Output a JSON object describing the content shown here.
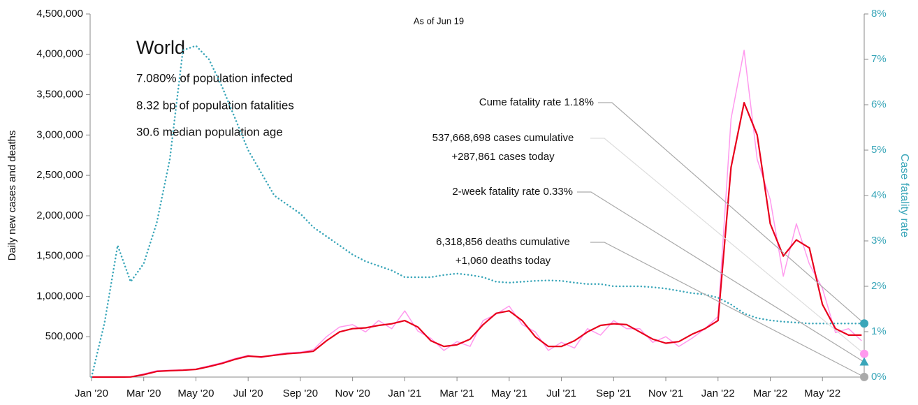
{
  "chart_data": {
    "type": "line",
    "subtitle": "As of Jun 19",
    "info": {
      "title": "World",
      "lines": [
        "7.080% of population infected",
        "8.32 bp of population fatalities",
        "30.6 median population age"
      ]
    },
    "y_label": "Daily new cases and deaths",
    "y2_label": "Case fatality rate",
    "x": [
      0,
      0.5,
      1,
      1.5,
      2,
      2.5,
      3,
      3.5,
      4,
      4.5,
      5,
      5.5,
      6,
      6.5,
      7,
      7.5,
      8,
      8.5,
      9,
      9.5,
      10,
      10.5,
      11,
      11.5,
      12,
      12.5,
      13,
      13.5,
      14,
      14.5,
      15,
      15.5,
      16,
      16.5,
      17,
      17.5,
      18,
      18.5,
      19,
      19.5,
      20,
      20.5,
      21,
      21.5,
      22,
      22.5,
      23,
      23.5,
      24,
      24.5,
      25,
      25.5,
      26,
      26.5,
      27,
      27.5,
      28,
      28.5,
      29,
      29.5
    ],
    "series": [
      {
        "color": "#ff99ee",
        "width": 1.5,
        "values": [
          0,
          0,
          0,
          3000,
          40000,
          80000,
          85000,
          90000,
          100000,
          140000,
          180000,
          230000,
          270000,
          240000,
          280000,
          300000,
          310000,
          340000,
          500000,
          620000,
          650000,
          560000,
          700000,
          600000,
          820000,
          570000,
          480000,
          330000,
          440000,
          380000,
          700000,
          780000,
          880000,
          650000,
          560000,
          330000,
          430000,
          360000,
          600000,
          520000,
          700000,
          600000,
          600000,
          430000,
          500000,
          380000,
          480000,
          600000,
          750000,
          3200000,
          4050000,
          2700000,
          2200000,
          1250000,
          1900000,
          1400000,
          1100000,
          550000,
          600000,
          450000
        ]
      },
      {
        "color": "#e8001c",
        "width": 2.2,
        "values": [
          0,
          0,
          0,
          2000,
          30000,
          70000,
          80000,
          85000,
          95000,
          130000,
          170000,
          220000,
          260000,
          250000,
          270000,
          290000,
          300000,
          320000,
          450000,
          560000,
          600000,
          610000,
          640000,
          660000,
          700000,
          620000,
          450000,
          380000,
          400000,
          470000,
          650000,
          790000,
          820000,
          700000,
          500000,
          380000,
          380000,
          450000,
          560000,
          640000,
          660000,
          650000,
          560000,
          470000,
          420000,
          440000,
          530000,
          600000,
          700000,
          2600000,
          3400000,
          3000000,
          1900000,
          1500000,
          1700000,
          1600000,
          900000,
          600000,
          520000,
          520000
        ]
      },
      {
        "color": "#3aa6b9",
        "width": 2.5,
        "dotted": true,
        "axis": "y2",
        "values": [
          0,
          1.2,
          2.9,
          2.1,
          2.5,
          3.4,
          4.8,
          7.2,
          7.3,
          7.0,
          6.4,
          5.7,
          5.0,
          4.5,
          4.0,
          3.8,
          3.6,
          3.3,
          3.1,
          2.9,
          2.7,
          2.55,
          2.45,
          2.35,
          2.2,
          2.2,
          2.2,
          2.25,
          2.28,
          2.25,
          2.2,
          2.1,
          2.08,
          2.1,
          2.12,
          2.13,
          2.12,
          2.08,
          2.05,
          2.05,
          2.0,
          2.0,
          2.0,
          1.98,
          1.95,
          1.9,
          1.85,
          1.82,
          1.75,
          1.6,
          1.4,
          1.3,
          1.25,
          1.22,
          1.2,
          1.18,
          1.18,
          1.18,
          1.18,
          1.18
        ]
      }
    ],
    "markers": [
      {
        "value": 1.18,
        "axis": "y2",
        "shape": "circle",
        "color": "#3aa6b9",
        "label": [
          "Cume fatality rate 1.18%"
        ]
      },
      {
        "value": 287861,
        "shape": "circle",
        "color": "#ff99ee",
        "label": [
          "537,668,698 cases cumulative",
          "+287,861 cases today"
        ]
      },
      {
        "value": 0.33,
        "axis": "y2",
        "shape": "triangle",
        "color": "#3aa6b9",
        "label": [
          "2-week fatality rate 0.33%"
        ]
      },
      {
        "value": 1060,
        "shape": "circle",
        "color": "#aaaaaa",
        "label": [
          "6,318,856 deaths cumulative",
          "+1,060 deaths today"
        ]
      }
    ],
    "xlim": [
      0,
      29.6
    ],
    "xticks": [
      {
        "value": 0,
        "label": "Jan '20"
      },
      {
        "value": 2,
        "label": "Mar '20"
      },
      {
        "value": 4,
        "label": "May '20"
      },
      {
        "value": 6,
        "label": "Jul '20"
      },
      {
        "value": 8,
        "label": "Sep '20"
      },
      {
        "value": 10,
        "label": "Nov '20"
      },
      {
        "value": 12,
        "label": "Jan '21"
      },
      {
        "value": 14,
        "label": "Mar '21"
      },
      {
        "value": 16,
        "label": "May '21"
      },
      {
        "value": 18,
        "label": "Jul '21"
      },
      {
        "value": 20,
        "label": "Sep '21"
      },
      {
        "value": 22,
        "label": "Nov '21"
      },
      {
        "value": 24,
        "label": "Jan '22"
      },
      {
        "value": 26,
        "label": "Mar '22"
      },
      {
        "value": 28,
        "label": "May '22"
      }
    ],
    "ylim": [
      0,
      4500000
    ],
    "yticks": [
      {
        "value": 500000,
        "label": "500,000"
      },
      {
        "value": 1000000,
        "label": "1,000,000"
      },
      {
        "value": 1500000,
        "label": "1,500,000"
      },
      {
        "value": 2000000,
        "label": "2,000,000"
      },
      {
        "value": 2500000,
        "label": "2,500,000"
      },
      {
        "value": 3000000,
        "label": "3,000,000"
      },
      {
        "value": 3500000,
        "label": "3,500,000"
      },
      {
        "value": 4000000,
        "label": "4,000,000"
      },
      {
        "value": 4500000,
        "label": "4,500,000"
      }
    ],
    "y2lim": [
      0,
      8
    ],
    "y2ticks": [
      {
        "value": 0,
        "label": "0%"
      },
      {
        "value": 1,
        "label": "1%"
      },
      {
        "value": 2,
        "label": "2%"
      },
      {
        "value": 3,
        "label": "3%"
      },
      {
        "value": 4,
        "label": "4%"
      },
      {
        "value": 5,
        "label": "5%"
      },
      {
        "value": 6,
        "label": "6%"
      },
      {
        "value": 7,
        "label": "7%"
      },
      {
        "value": 8,
        "label": "8%"
      }
    ],
    "y2_color": "#3aa6b9"
  }
}
